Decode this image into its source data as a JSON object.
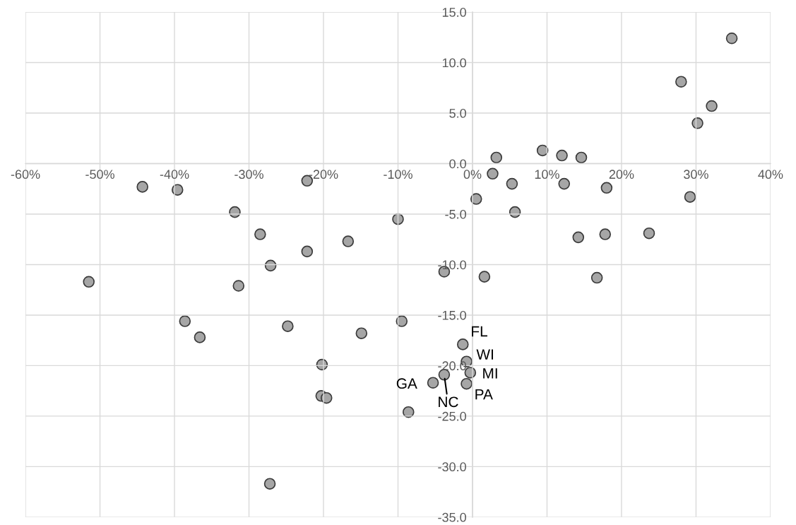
{
  "chart_data": {
    "type": "scatter",
    "x": [
      34.8,
      28.0,
      32.1,
      30.2,
      9.4,
      12.0,
      14.6,
      3.2,
      2.7,
      5.3,
      12.3,
      18.0,
      29.2,
      0.5,
      5.7,
      -10.0,
      -44.3,
      -39.6,
      -22.2,
      -31.9,
      -28.5,
      -16.7,
      -22.2,
      -27.1,
      -51.5,
      -31.4,
      -38.6,
      -36.6,
      -24.8,
      -14.9,
      -20.2,
      -20.3,
      -19.6,
      -27.2,
      -3.8,
      1.6,
      -9.5,
      14.2,
      -1.3,
      -0.8,
      -0.3,
      -0.8,
      -3.8,
      -5.3,
      -8.6,
      17.8,
      23.7,
      16.7
    ],
    "values": [
      12.4,
      8.1,
      5.7,
      4.0,
      1.3,
      0.8,
      0.6,
      0.6,
      -1.0,
      -2.0,
      -2.0,
      -2.4,
      -3.3,
      -3.5,
      -4.8,
      -5.5,
      -2.3,
      -2.6,
      -1.7,
      -4.8,
      -7.0,
      -7.7,
      -8.7,
      -10.1,
      -11.7,
      -12.1,
      -15.6,
      -17.2,
      -16.1,
      -16.8,
      -19.9,
      -23.0,
      -23.2,
      -31.7,
      -10.7,
      -11.2,
      -15.6,
      -7.3,
      -17.9,
      -19.6,
      -20.7,
      -21.8,
      -20.9,
      -21.7,
      -24.6,
      -7.0,
      -6.9,
      -11.3
    ],
    "color": "#a6a6a6",
    "marker": "circle",
    "grid": true,
    "xlim": [
      -60,
      40
    ],
    "xticks": [
      {
        "value": -60,
        "label": "-60%"
      },
      {
        "value": -50,
        "label": "-50%"
      },
      {
        "value": -40,
        "label": "-40%"
      },
      {
        "value": -30,
        "label": "-30%"
      },
      {
        "value": -20,
        "label": "-20%"
      },
      {
        "value": -10,
        "label": "-10%"
      },
      {
        "value": 0,
        "label": "0%"
      },
      {
        "value": 10,
        "label": "10%"
      },
      {
        "value": 20,
        "label": "20%"
      },
      {
        "value": 30,
        "label": "30%"
      },
      {
        "value": 40,
        "label": "40%"
      }
    ],
    "ylim": [
      -35,
      15
    ],
    "yticks": [
      {
        "value": 15,
        "label": "15.0"
      },
      {
        "value": 10,
        "label": "10.0"
      },
      {
        "value": 5,
        "label": "5.0"
      },
      {
        "value": 0,
        "label": "0.0"
      },
      {
        "value": -5,
        "label": "-5.0"
      },
      {
        "value": -10,
        "label": "-10.0"
      },
      {
        "value": -15,
        "label": "-15.0"
      },
      {
        "value": -20,
        "label": "-20.0"
      },
      {
        "value": -25,
        "label": "-25.0"
      },
      {
        "value": -30,
        "label": "-30.0"
      },
      {
        "value": -35,
        "label": "-35.0"
      }
    ],
    "annotations": [
      {
        "text": "FL",
        "x": -1.3,
        "y": -17.9
      },
      {
        "text": "WI",
        "x": -0.8,
        "y": -19.6
      },
      {
        "text": "MI",
        "x": -0.3,
        "y": -20.7
      },
      {
        "text": "PA",
        "x": -0.8,
        "y": -21.8
      },
      {
        "text": "NC",
        "x": -3.8,
        "y": -20.9
      },
      {
        "text": "GA",
        "x": -5.3,
        "y": -21.7
      }
    ]
  }
}
